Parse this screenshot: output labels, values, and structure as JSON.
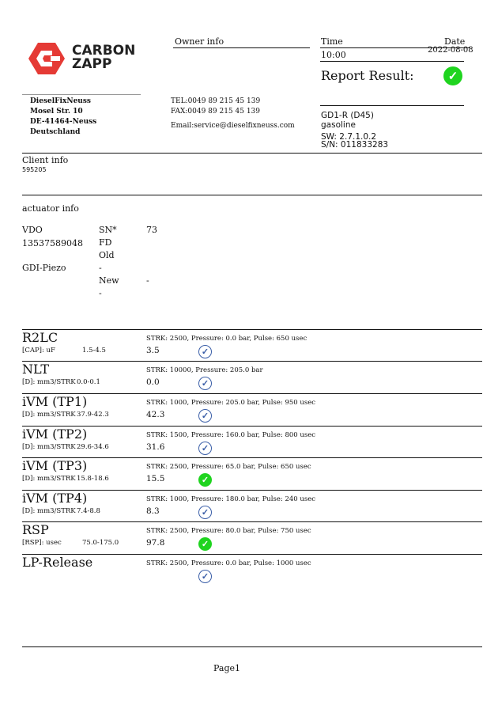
{
  "logo": {
    "line1": "CARBON",
    "line2": "ZAPP",
    "color": "#e53a35"
  },
  "owner": {
    "title": "Owner info",
    "tel": "TEL:0049 89 215 45 139",
    "fax": "FAX:0049 89 215 45 139",
    "email": "Email:service@dieselfixneuss.com"
  },
  "company": {
    "name": "DieselFixNeuss",
    "street": "Mosel Str. 10",
    "city": "DE-41464-Neuss",
    "country": "Deutschland"
  },
  "header": {
    "time_label": "Time",
    "date_label": "Date",
    "time": "10:00",
    "date": "2022-08-08",
    "report_result": "Report Result:",
    "result_icon": "check-circle-green"
  },
  "device": {
    "model": "GD1-R (D45)",
    "fuel": "gasoline",
    "sw": "SW: 2.7.1.0.2",
    "sn": "S/N: 011833283"
  },
  "client": {
    "title": "Client info",
    "id": "595205"
  },
  "actuator": {
    "title": "actuator info",
    "brand": "VDO",
    "part": "13537589048",
    "type": "GDI-Piezo",
    "sn_label": "SN*",
    "sn": "73",
    "fd": "FD",
    "old": "Old",
    "old_val": "-",
    "new": "New",
    "new_val": "-",
    "new_val2": "-"
  },
  "tests": [
    {
      "name": "R2LC",
      "unit": "[CAP]: uF",
      "range": "1.5-4.5",
      "params": "STRK: 2500, Pressure: 0.0 bar, Pulse: 650 usec",
      "value": "3.5",
      "status": "ok"
    },
    {
      "name": "NLT",
      "unit": "[D]: mm3/STRK",
      "range": "0.0-0.1",
      "params": "STRK: 10000, Pressure: 205.0 bar",
      "value": "0.0",
      "status": "ok"
    },
    {
      "name": "iVM (TP1)",
      "unit": "[D]: mm3/STRK",
      "range": "37.9-42.3",
      "params": "STRK: 1000, Pressure: 205.0 bar, Pulse: 950 usec",
      "value": "42.3",
      "status": "ok"
    },
    {
      "name": "iVM (TP2)",
      "unit": "[D]: mm3/STRK",
      "range": "29.6-34.6",
      "params": "STRK: 1500, Pressure: 160.0 bar, Pulse: 800 usec",
      "value": "31.6",
      "status": "ok"
    },
    {
      "name": "iVM (TP3)",
      "unit": "[D]: mm3/STRK",
      "range": "15.8-18.6",
      "params": "STRK: 2500, Pressure: 65.0 bar, Pulse: 650 usec",
      "value": "15.5",
      "status": "pass"
    },
    {
      "name": "iVM (TP4)",
      "unit": "[D]: mm3/STRK",
      "range": "7.4-8.8",
      "params": "STRK: 1000, Pressure: 180.0 bar, Pulse: 240 usec",
      "value": "8.3",
      "status": "ok"
    },
    {
      "name": "RSP",
      "unit": "[RSP]: usec",
      "range": "75.0-175.0",
      "params": "STRK: 2500, Pressure: 80.0 bar, Pulse: 750 usec",
      "value": "97.8",
      "status": "pass"
    },
    {
      "name": "LP-Release",
      "unit": "",
      "range": "",
      "params": "STRK: 2500, Pressure: 0.0 bar, Pulse: 1000 usec",
      "value": "",
      "status": "ok"
    }
  ],
  "footer": {
    "page": "Page1"
  }
}
